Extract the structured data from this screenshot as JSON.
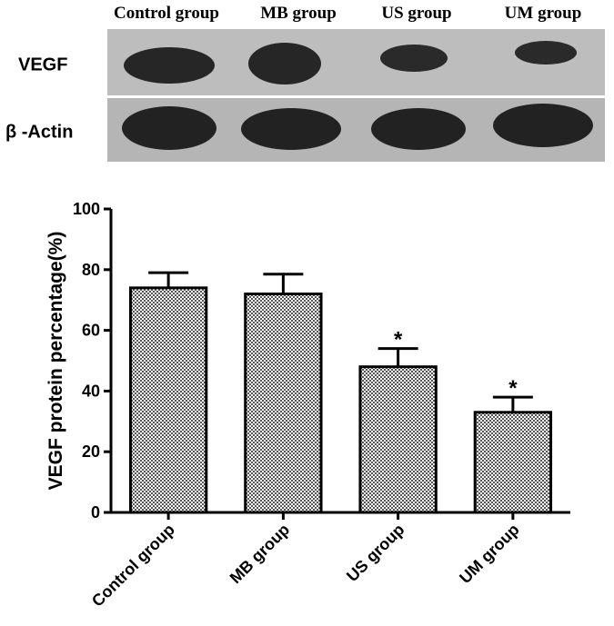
{
  "blot": {
    "columns": [
      "Control group",
      "MB group",
      "US group",
      "UM group"
    ],
    "rows": [
      "VEGF",
      "β -Actin"
    ]
  },
  "chart_data": {
    "type": "bar",
    "y_label": "VEGF protein percentage(%)",
    "categories": [
      "Control group",
      "MB group",
      "US group",
      "UM group"
    ],
    "values": [
      74,
      72,
      48,
      33
    ],
    "errors": [
      5,
      6.5,
      6,
      5
    ],
    "significance": [
      null,
      null,
      "*",
      "*"
    ],
    "ylim": [
      0,
      100
    ],
    "yticks": [
      0,
      20,
      40,
      60,
      80,
      100
    ]
  }
}
